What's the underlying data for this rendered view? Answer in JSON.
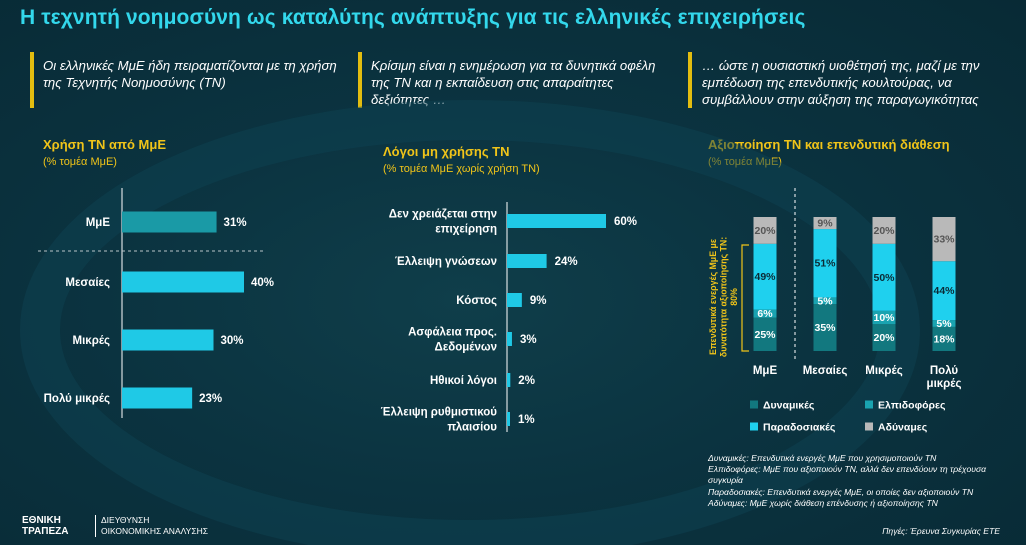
{
  "page_title": "Η τεχνητή νοημοσύνη ως καταλύτης ανάπτυξης για τις ελληνικές επιχειρήσεις",
  "intros": [
    "Οι ελληνικές ΜμΕ ήδη πειραματίζονται με τη χρήση της Τεχνητής Νοημοσύνης (ΤΝ)",
    "Κρίσιμη είναι η ενημέρωση για τα δυνητικά οφέλη της ΤΝ και η εκπαίδευση στις απαραίτητες δεξιότητες …",
    "… ώστε η ουσιαστική υιοθέτησή της, μαζί με την εμπέδωση της επενδυτικής κουλτούρας, να συμβάλλουν στην αύξηση της παραγωγικότητας"
  ],
  "colors": {
    "title": "#33d8ec",
    "accent": "#f0c419",
    "bar": "#1fc9e6",
    "bar_dark": "#1a9aa6",
    "dyn": "#12787f",
    "hope": "#1aa3b0",
    "trad": "#1fd0ee",
    "nowill": "#b9b9b9"
  },
  "chart_data": [
    {
      "type": "bar",
      "orientation": "horizontal",
      "title": "Χρήση ΤΝ από ΜμΕ",
      "subtitle": "(% τομέα ΜμΕ)",
      "categories": [
        "ΜμΕ",
        "Μεσαίες",
        "Μικρές",
        "Πολύ μικρές"
      ],
      "values": [
        31,
        40,
        30,
        23
      ],
      "labels": [
        "31%",
        "40%",
        "30%",
        "23%"
      ],
      "xlim": [
        0,
        100
      ]
    },
    {
      "type": "bar",
      "orientation": "horizontal",
      "title": "Λόγοι μη χρήσης ΤΝ",
      "subtitle": "(%  τομέα ΜμΕ χωρίς χρήση ΤΝ)",
      "categories": [
        [
          "Δεν χρειάζεται στην",
          "επιχείρηση"
        ],
        [
          "Έλλειψη γνώσεων"
        ],
        [
          "Κόστος"
        ],
        [
          "Ασφάλεια προς.",
          "Δεδομένων"
        ],
        [
          "Ηθικοί λόγοι"
        ],
        [
          "Έλλειψη ρυθμιστικού",
          "πλαισίου"
        ]
      ],
      "values": [
        60,
        24,
        9,
        3,
        2,
        1
      ],
      "labels": [
        "60%",
        "24%",
        "9%",
        "3%",
        "2%",
        "1%"
      ],
      "xlim": [
        0,
        100
      ]
    },
    {
      "type": "bar",
      "stacked": true,
      "title": "Αξιοποίηση ΤΝ και επενδυτική διάθεση",
      "subtitle": "(% τομέα ΜμΕ)",
      "categories": [
        [
          "ΜμΕ"
        ],
        [
          "Μεσαίες"
        ],
        [
          "Μικρές"
        ],
        [
          "Πολύ",
          "μικρές"
        ]
      ],
      "series": [
        {
          "name": "Δυναμικές",
          "values": [
            25,
            35,
            20,
            18
          ],
          "labels": [
            "25%",
            "35%",
            "20%",
            "18%"
          ]
        },
        {
          "name": "Ελπιδοφόρες",
          "values": [
            6,
            5,
            10,
            5
          ],
          "labels": [
            "6%",
            "5%",
            "10%",
            "5%"
          ]
        },
        {
          "name": "Παραδοσιακές",
          "values": [
            49,
            51,
            50,
            44
          ],
          "labels": [
            "49%",
            "51%",
            "50%",
            "44%"
          ]
        },
        {
          "name": "Αδύναμες",
          "values": [
            20,
            9,
            20,
            33
          ],
          "labels": [
            "20%",
            "9%",
            "20%",
            "33%"
          ]
        }
      ],
      "ylim": [
        0,
        100
      ],
      "annotation": [
        "Επενδυτικά ενεργές ΜμΕ με",
        "δυνατότητα αξιοποίησης ΤΝ:",
        "80%"
      ],
      "legend": [
        "Δυναμικές",
        "Ελπιδοφόρες",
        "Παραδοσιακές",
        "Αδύναμες"
      ]
    }
  ],
  "definitions": [
    "Δυναμικές: Επενδυτικά ενεργές ΜμΕ που χρησιμοποιούν ΤΝ",
    "Ελπιδοφόρες: ΜμΕ που αξιοποιούν ΤΝ, αλλά δεν επενδύουν τη τρέχουσα συγκυρία",
    "Παραδοσιακές: Επενδυτικά ενεργές ΜμΕ, οι οποίες δεν αξιοποιούν ΤΝ",
    "Αδύναμες: ΜμΕ χωρίς διάθεση επένδυσης ή αξιοποίησης ΤΝ"
  ],
  "source": "Πηγές: Έρευνα Συγκυρίας ΕΤΕ",
  "footer": {
    "logo": [
      "ΕΘΝΙΚΗ",
      "ΤΡΑΠΕΖΑ"
    ],
    "dept": [
      "ΔΙΕΥΘΥΝΣΗ",
      "ΟΙΚΟΝΟΜΙΚΗΣ ΑΝΑΛΥΣΗΣ"
    ]
  }
}
